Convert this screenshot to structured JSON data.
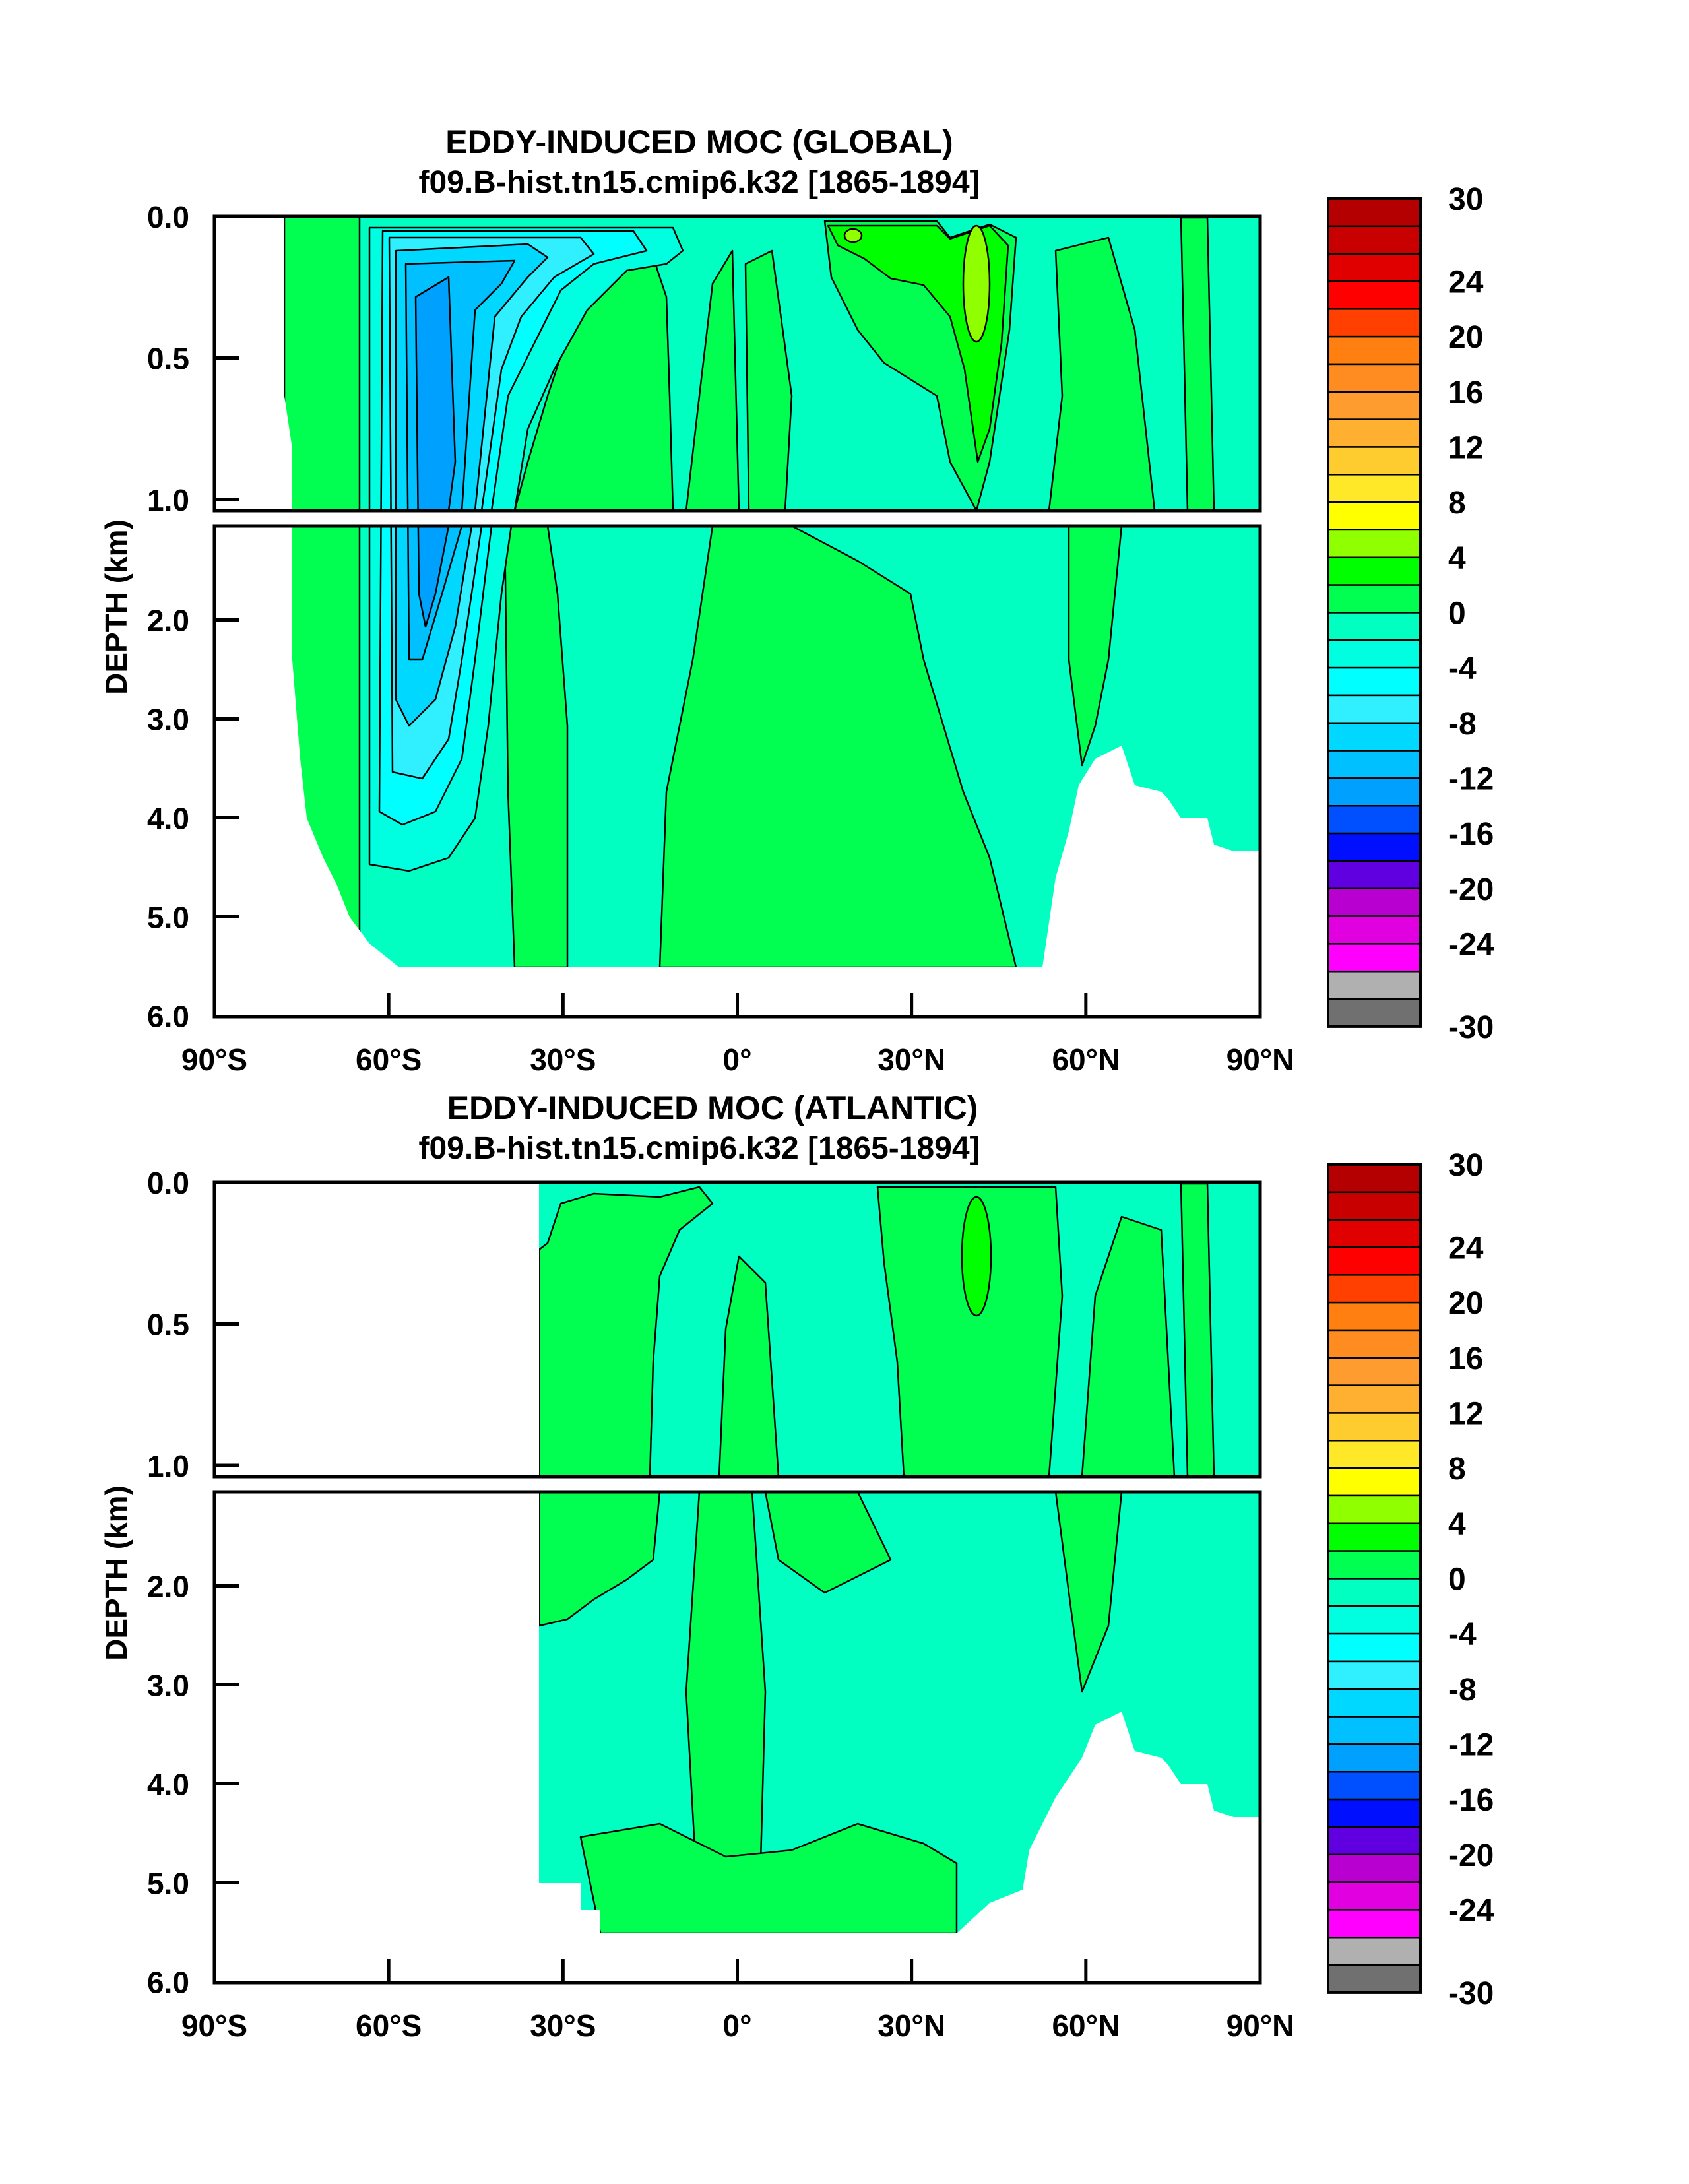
{
  "chart_data": [
    {
      "type": "heatmap",
      "subtype": "filled-contour",
      "title": "EDDY-INDUCED MOC (GLOBAL)",
      "subtitle": "f09.B-hist.tn15.cmip6.k32 [1865-1894]",
      "xlabel": "",
      "ylabel": "DEPTH (km)",
      "xlim": [
        -90,
        90
      ],
      "ylim": [
        6.0,
        0.0
      ],
      "x_tick_labels": [
        "90°S",
        "60°S",
        "30°S",
        "0°",
        "30°N",
        "60°N",
        "90°N"
      ],
      "y_tick_labels": [
        "0.0",
        "0.5",
        "1.0",
        "2.0",
        "3.0",
        "4.0",
        "5.0",
        "6.0"
      ],
      "y_axis_break_km": [
        1.0,
        1.05
      ],
      "value_range_observed": [
        -14,
        6
      ],
      "features": {
        "min_cell_lat": [
          -60,
          -45
        ],
        "min_value": -14,
        "max_cell_lat": [
          35,
          45
        ],
        "max_value": 6
      }
    },
    {
      "type": "heatmap",
      "subtype": "filled-contour",
      "title": "EDDY-INDUCED MOC (ATLANTIC)",
      "subtitle": "f09.B-hist.tn15.cmip6.k32 [1865-1894]",
      "xlabel": "",
      "ylabel": "DEPTH (km)",
      "xlim": [
        -90,
        90
      ],
      "ylim": [
        6.0,
        0.0
      ],
      "x_tick_labels": [
        "90°S",
        "60°S",
        "30°S",
        "0°",
        "30°N",
        "60°N",
        "90°N"
      ],
      "y_tick_labels": [
        "0.0",
        "0.5",
        "1.0",
        "2.0",
        "3.0",
        "4.0",
        "5.0",
        "6.0"
      ],
      "y_axis_break_km": [
        1.0,
        1.05
      ],
      "value_range_observed": [
        -4,
        4
      ],
      "features": {
        "data_start_lat": -34,
        "max_cell_lat": [
          38,
          45
        ],
        "max_value": 4
      }
    }
  ],
  "colorbar": {
    "levels_min": -30,
    "levels_max": 30,
    "interval": 2,
    "labels": [
      "30",
      "24",
      "20",
      "16",
      "12",
      "8",
      "4",
      "0",
      "-4",
      "-8",
      "-12",
      "-16",
      "-20",
      "-24",
      "-30"
    ],
    "colors_top_to_bottom": [
      "#b40000",
      "#c80000",
      "#e00000",
      "#ff0000",
      "#ff4000",
      "#ff8010",
      "#ff8c20",
      "#ff9c30",
      "#ffb030",
      "#ffcc30",
      "#ffe828",
      "#ffff00",
      "#90ff00",
      "#00ff00",
      "#00ff50",
      "#00ffc0",
      "#00ffe0",
      "#00ffff",
      "#30f0ff",
      "#00d8ff",
      "#00c0ff",
      "#00a0ff",
      "#0050ff",
      "#0010ff",
      "#6000e0",
      "#b800d0",
      "#e000e0",
      "#ff00ff",
      "#b0b0b0",
      "#707070"
    ]
  }
}
